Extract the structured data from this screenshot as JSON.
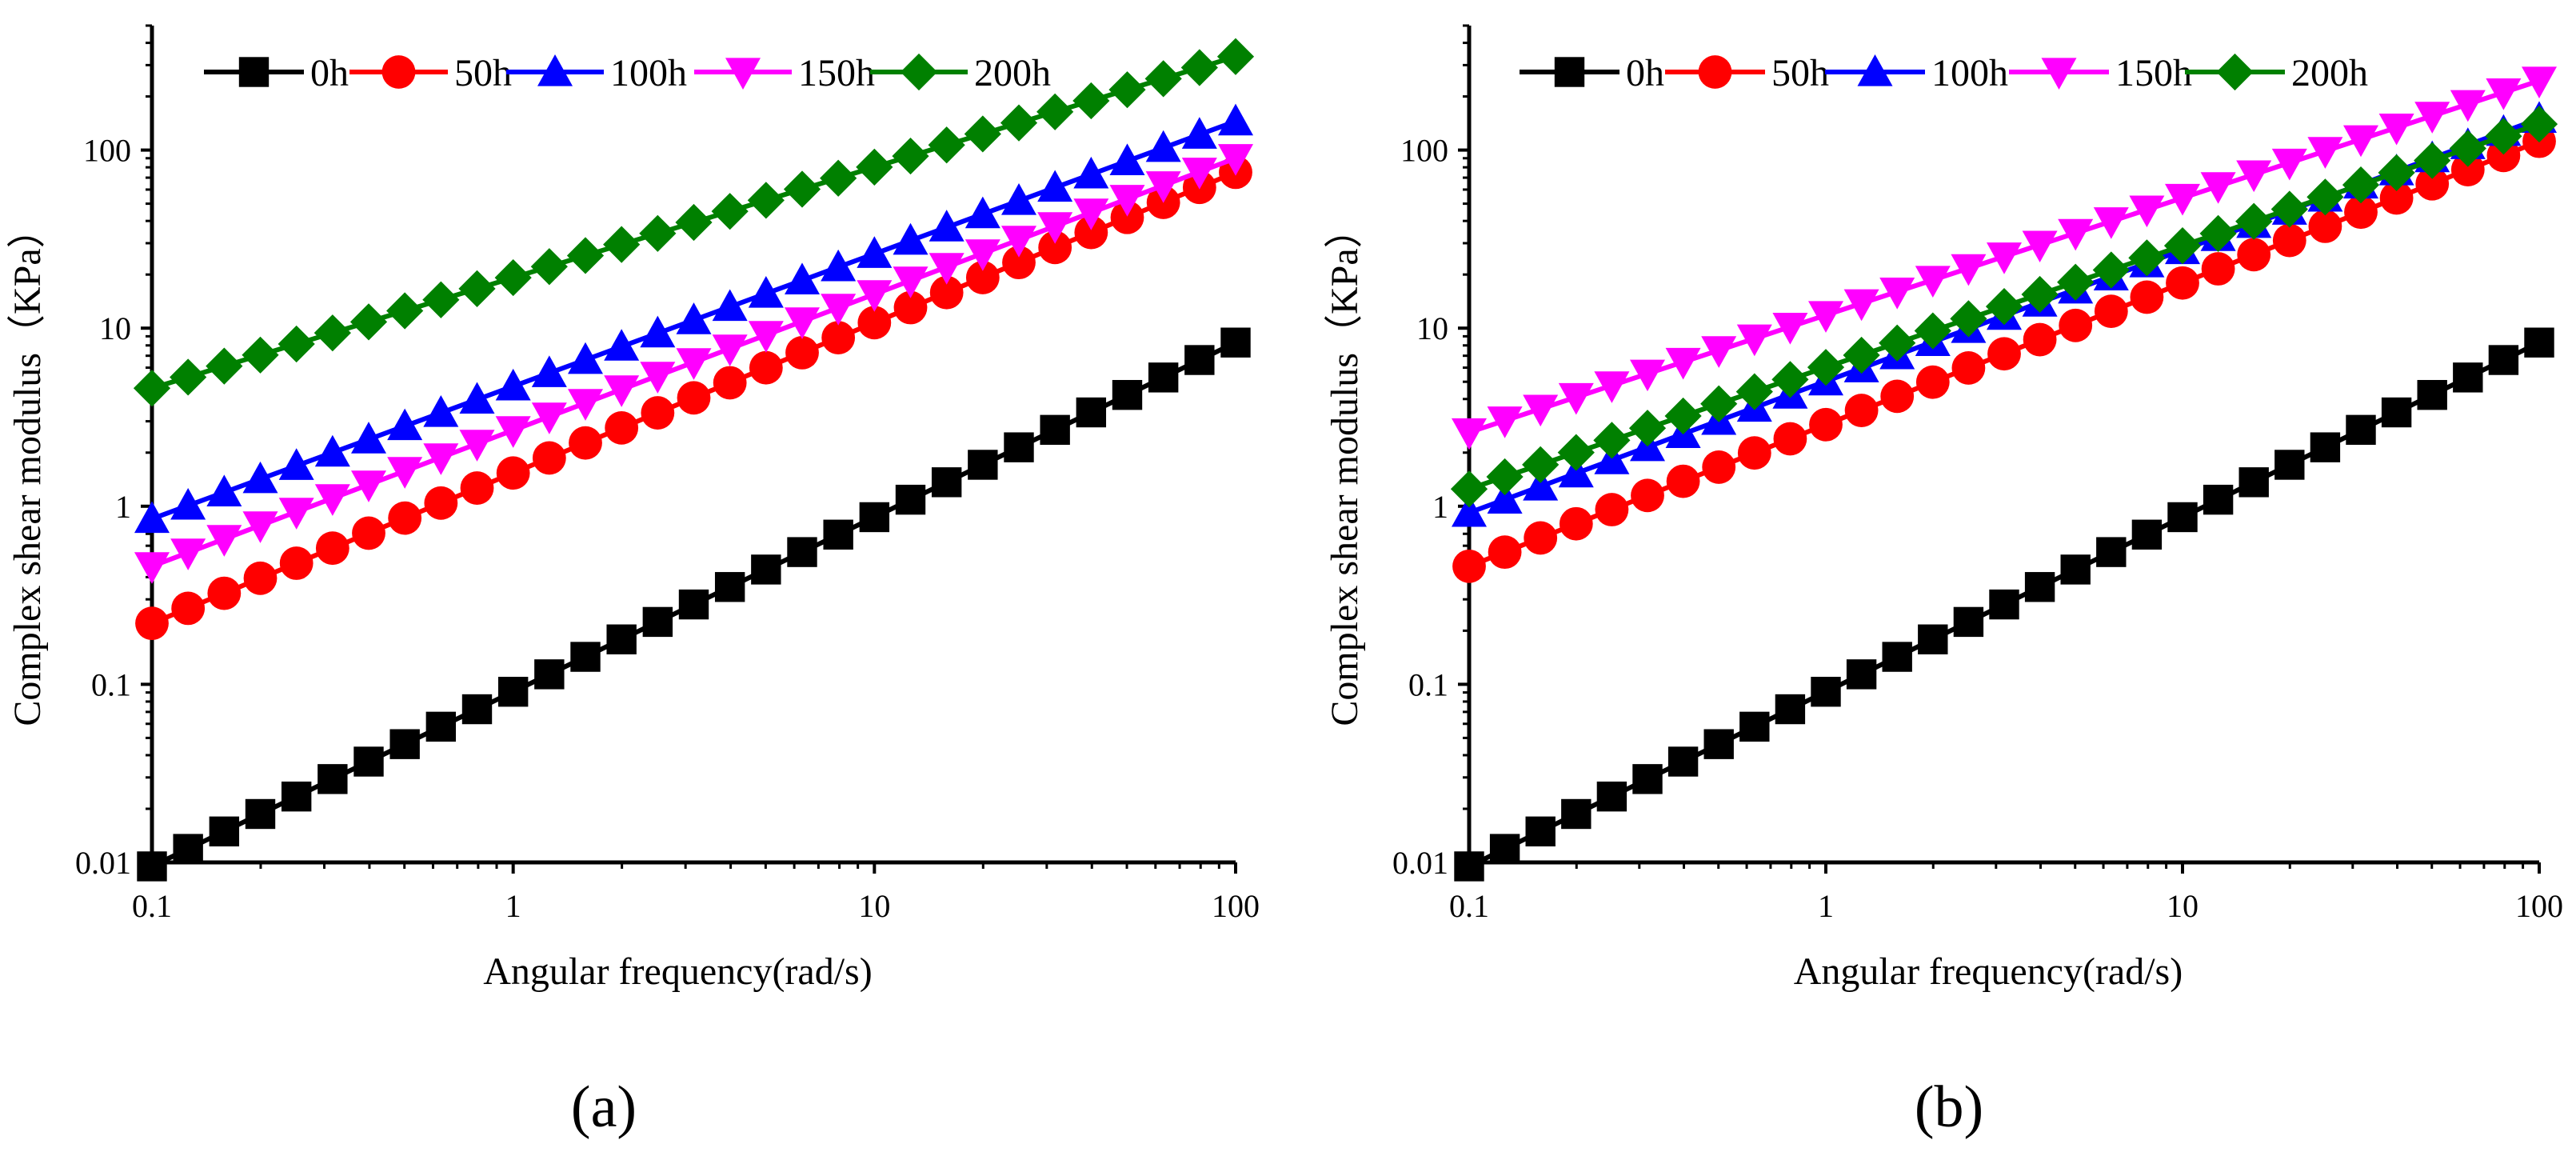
{
  "chart_data": [
    {
      "type": "line",
      "panel_label": "(a)",
      "xlabel": "Angular frequency(rad/s)",
      "ylabel": "Complex shear modulus（KPa）",
      "xscale": "log",
      "yscale": "log",
      "xlim": [
        0.1,
        100
      ],
      "ylim": [
        0.01,
        500
      ],
      "x_ticks": [
        "0.1",
        "1",
        "10",
        "100"
      ],
      "y_ticks": [
        "0.01",
        "0.1",
        "1",
        "10",
        "100"
      ],
      "legend_position": "top",
      "series": [
        {
          "name": "0h",
          "color": "#000000",
          "marker": "square",
          "start": 0.0095,
          "end": 8.3
        },
        {
          "name": "50h",
          "color": "#ff0000",
          "marker": "circle",
          "start": 0.22,
          "end": 75
        },
        {
          "name": "100h",
          "color": "#0000ff",
          "marker": "triangle-up",
          "start": 0.85,
          "end": 145
        },
        {
          "name": "150h",
          "color": "#ff00ff",
          "marker": "triangle-down",
          "start": 0.46,
          "end": 90
        },
        {
          "name": "200h",
          "color": "#008000",
          "marker": "diamond",
          "start": 4.6,
          "end": 335
        }
      ]
    },
    {
      "type": "line",
      "panel_label": "(b)",
      "xlabel": "Angular frequency(rad/s)",
      "ylabel": "Complex shear modulus（KPa）",
      "xscale": "log",
      "yscale": "log",
      "xlim": [
        0.1,
        100
      ],
      "ylim": [
        0.01,
        500
      ],
      "x_ticks": [
        "0.1",
        "1",
        "10",
        "100"
      ],
      "y_ticks": [
        "0.01",
        "0.1",
        "1",
        "10",
        "100"
      ],
      "legend_position": "top",
      "series": [
        {
          "name": "0h",
          "color": "#000000",
          "marker": "square",
          "start": 0.0095,
          "end": 8.3
        },
        {
          "name": "50h",
          "color": "#ff0000",
          "marker": "circle",
          "start": 0.46,
          "end": 112
        },
        {
          "name": "100h",
          "color": "#0000ff",
          "marker": "triangle-up",
          "start": 0.92,
          "end": 150
        },
        {
          "name": "150h",
          "color": "#ff00ff",
          "marker": "triangle-down",
          "start": 2.6,
          "end": 245
        },
        {
          "name": "200h",
          "color": "#008000",
          "marker": "diamond",
          "start": 1.25,
          "end": 140
        }
      ]
    }
  ]
}
